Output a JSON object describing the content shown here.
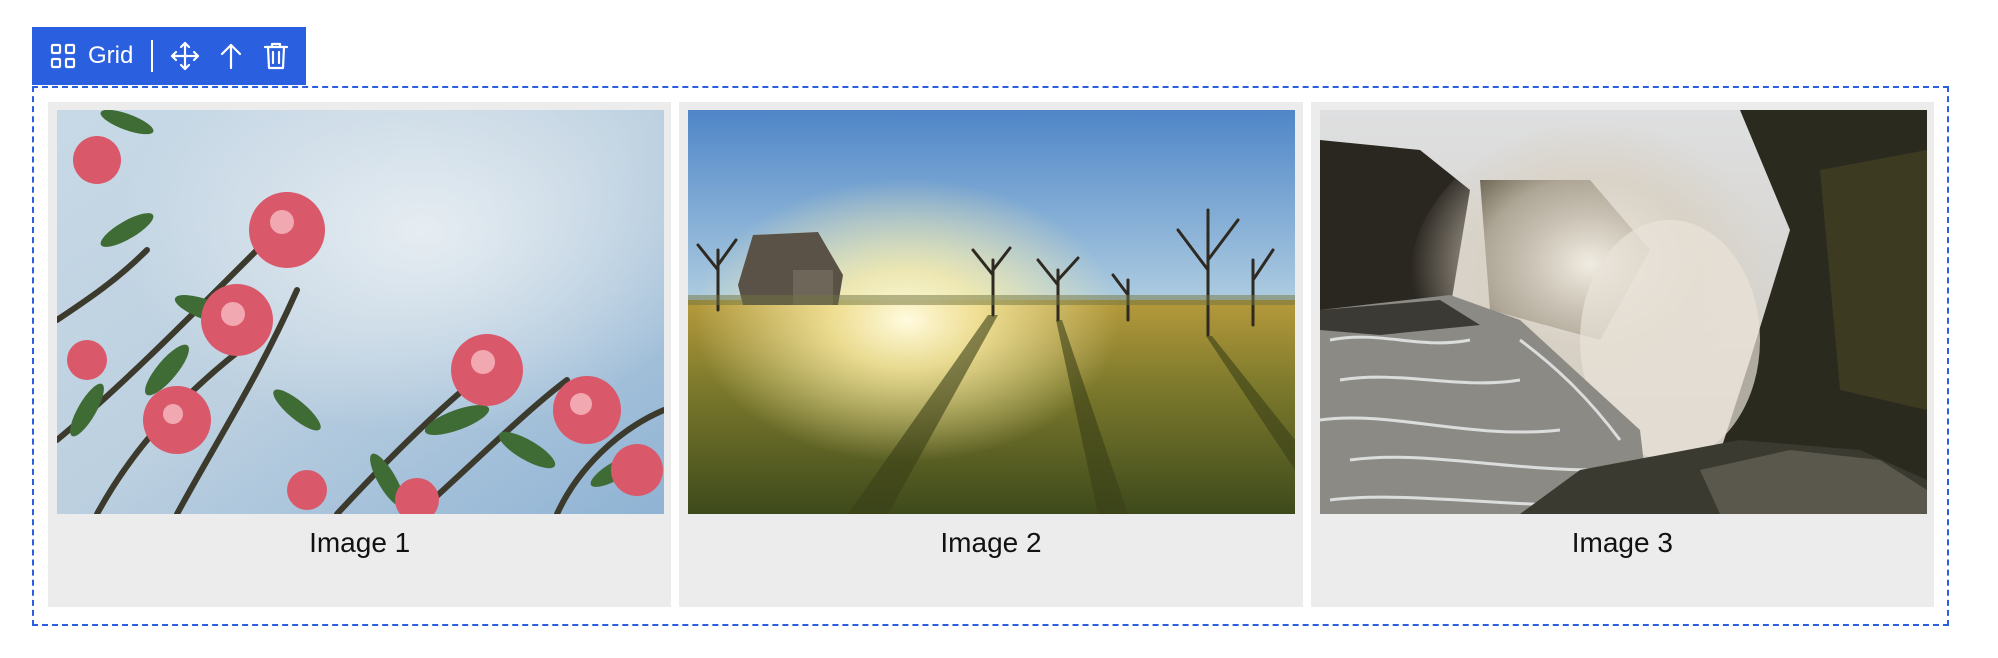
{
  "toolbar": {
    "block_label": "Grid",
    "block_icon": "grid-icon",
    "actions": [
      "move-icon",
      "arrow-up-icon",
      "trash-icon"
    ],
    "accent_color": "#2a5fe0"
  },
  "grid": {
    "items": [
      {
        "caption": "Image 1",
        "icon": "flowers-photo"
      },
      {
        "caption": "Image 2",
        "icon": "field-sunset-photo"
      },
      {
        "caption": "Image 3",
        "icon": "waterfall-photo"
      }
    ]
  }
}
